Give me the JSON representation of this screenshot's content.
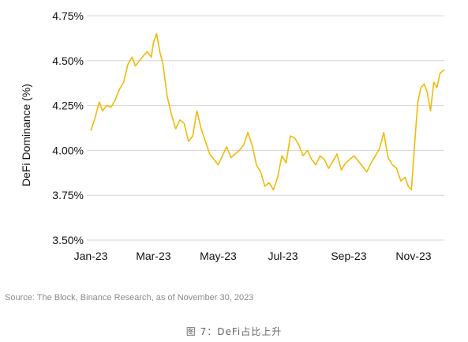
{
  "chart_data": {
    "type": "line",
    "ylabel": "DeFi Dominance (%)",
    "xlabel": "",
    "ylim": [
      3.5,
      4.75
    ],
    "yticks": [
      3.5,
      3.75,
      4.0,
      4.25,
      4.5,
      4.75
    ],
    "ytick_labels": [
      "3.50%",
      "3.75%",
      "4.00%",
      "4.25%",
      "4.50%",
      "4.75%"
    ],
    "xlim": [
      "2023-01-01",
      "2023-11-30"
    ],
    "xticks": [
      "2023-01-01",
      "2023-03-01",
      "2023-05-01",
      "2023-07-01",
      "2023-09-01",
      "2023-11-01"
    ],
    "xtick_labels": [
      "Jan-23",
      "Mar-23",
      "May-23",
      "Jul-23",
      "Sep-23",
      "Nov-23"
    ],
    "grid": "horizontal",
    "line_color": "#F0B90B",
    "series": [
      {
        "x": [
          "2023-01-01",
          "2023-01-05",
          "2023-01-09",
          "2023-01-12",
          "2023-01-16",
          "2023-01-20",
          "2023-01-24",
          "2023-01-28",
          "2023-02-01",
          "2023-02-05",
          "2023-02-09",
          "2023-02-12",
          "2023-02-16",
          "2023-02-20",
          "2023-02-23",
          "2023-02-27",
          "2023-03-01",
          "2023-03-04",
          "2023-03-07",
          "2023-03-10",
          "2023-03-14",
          "2023-03-18",
          "2023-03-22",
          "2023-03-26",
          "2023-03-30",
          "2023-04-03",
          "2023-04-07",
          "2023-04-11",
          "2023-04-15",
          "2023-04-19",
          "2023-04-23",
          "2023-04-27",
          "2023-05-01",
          "2023-05-05",
          "2023-05-09",
          "2023-05-13",
          "2023-05-17",
          "2023-05-21",
          "2023-05-25",
          "2023-05-29",
          "2023-06-02",
          "2023-06-06",
          "2023-06-10",
          "2023-06-14",
          "2023-06-18",
          "2023-06-22",
          "2023-06-26",
          "2023-06-30",
          "2023-07-04",
          "2023-07-08",
          "2023-07-12",
          "2023-07-16",
          "2023-07-20",
          "2023-07-24",
          "2023-07-28",
          "2023-08-01",
          "2023-08-05",
          "2023-08-09",
          "2023-08-13",
          "2023-08-17",
          "2023-08-21",
          "2023-08-25",
          "2023-08-29",
          "2023-09-02",
          "2023-09-06",
          "2023-09-10",
          "2023-09-14",
          "2023-09-18",
          "2023-09-22",
          "2023-09-26",
          "2023-09-30",
          "2023-10-04",
          "2023-10-08",
          "2023-10-12",
          "2023-10-16",
          "2023-10-20",
          "2023-10-24",
          "2023-10-27",
          "2023-10-30",
          "2023-11-02",
          "2023-11-05",
          "2023-11-08",
          "2023-11-11",
          "2023-11-14",
          "2023-11-17",
          "2023-11-20",
          "2023-11-23",
          "2023-11-26",
          "2023-11-30"
        ],
        "values": [
          4.11,
          4.18,
          4.27,
          4.22,
          4.25,
          4.24,
          4.28,
          4.34,
          4.38,
          4.48,
          4.52,
          4.47,
          4.5,
          4.53,
          4.55,
          4.52,
          4.6,
          4.65,
          4.55,
          4.48,
          4.3,
          4.2,
          4.12,
          4.17,
          4.15,
          4.05,
          4.08,
          4.22,
          4.12,
          4.05,
          3.98,
          3.95,
          3.92,
          3.97,
          4.02,
          3.96,
          3.98,
          4.0,
          4.03,
          4.1,
          4.03,
          3.92,
          3.88,
          3.8,
          3.82,
          3.78,
          3.85,
          3.97,
          3.93,
          4.08,
          4.07,
          4.03,
          3.97,
          4.0,
          3.95,
          3.92,
          3.97,
          3.95,
          3.9,
          3.94,
          3.98,
          3.89,
          3.93,
          3.95,
          3.97,
          3.94,
          3.91,
          3.88,
          3.93,
          3.97,
          4.01,
          4.1,
          3.96,
          3.92,
          3.9,
          3.83,
          3.85,
          3.8,
          3.78,
          4.03,
          4.27,
          4.35,
          4.37,
          4.32,
          4.22,
          4.38,
          4.35,
          4.43,
          4.45
        ]
      }
    ]
  },
  "source_text": "Source: The Block, Binance Research, as of November 30, 2023",
  "caption": "图 7：DeFi占比上升"
}
